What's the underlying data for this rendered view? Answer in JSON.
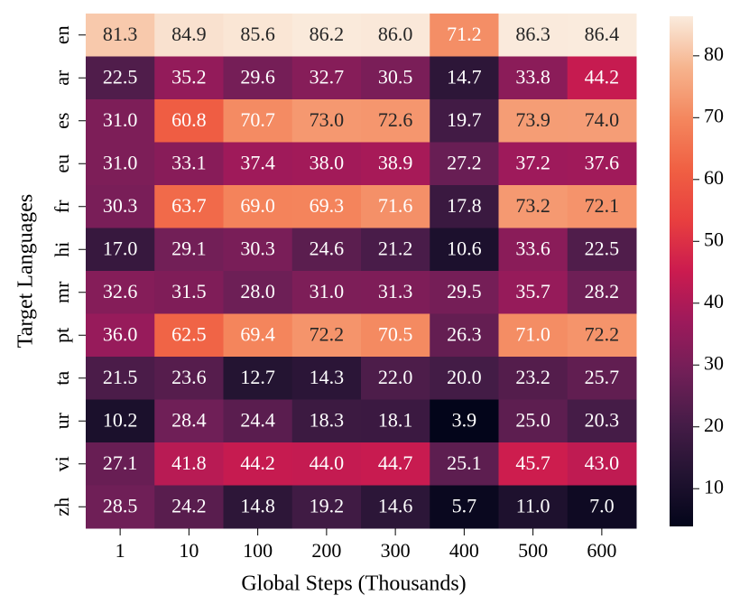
{
  "chart_data": {
    "type": "heatmap",
    "x_label": "Global Steps (Thousands)",
    "y_label": "Target Languages",
    "categories": [
      "1",
      "10",
      "100",
      "200",
      "300",
      "400",
      "500",
      "600"
    ],
    "series": [
      {
        "name": "en",
        "values": [
          81.3,
          84.9,
          85.6,
          86.2,
          86.0,
          71.2,
          86.3,
          86.4
        ],
        "value_labels": [
          "81.3",
          "84.9",
          "85.6",
          "86.2",
          "86.0",
          "71.2",
          "86.3",
          "86.4"
        ]
      },
      {
        "name": "ar",
        "values": [
          22.5,
          35.2,
          29.6,
          32.7,
          30.5,
          14.7,
          33.8,
          44.2
        ],
        "value_labels": [
          "22.5",
          "35.2",
          "29.6",
          "32.7",
          "30.5",
          "14.7",
          "33.8",
          "44.2"
        ]
      },
      {
        "name": "es",
        "values": [
          31.0,
          60.8,
          70.7,
          73.0,
          72.6,
          19.7,
          73.9,
          74.0
        ],
        "value_labels": [
          "31.0",
          "60.8",
          "70.7",
          "73.0",
          "72.6",
          "19.7",
          "73.9",
          "74.0"
        ]
      },
      {
        "name": "eu",
        "values": [
          31.0,
          33.1,
          37.4,
          38.0,
          38.9,
          27.2,
          37.2,
          37.6
        ],
        "value_labels": [
          "31.0",
          "33.1",
          "37.4",
          "38.0",
          "38.9",
          "27.2",
          "37.2",
          "37.6"
        ]
      },
      {
        "name": "fr",
        "values": [
          30.3,
          63.7,
          69.0,
          69.3,
          71.6,
          17.8,
          73.2,
          72.1
        ],
        "value_labels": [
          "30.3",
          "63.7",
          "69.0",
          "69.3",
          "71.6",
          "17.8",
          "73.2",
          "72.1"
        ]
      },
      {
        "name": "hi",
        "values": [
          17.0,
          29.1,
          30.3,
          24.6,
          21.2,
          10.6,
          33.6,
          22.5
        ],
        "value_labels": [
          "17.0",
          "29.1",
          "30.3",
          "24.6",
          "21.2",
          "10.6",
          "33.6",
          "22.5"
        ]
      },
      {
        "name": "mr",
        "values": [
          32.6,
          31.5,
          28.0,
          31.0,
          31.3,
          29.5,
          35.7,
          28.2
        ],
        "value_labels": [
          "32.6",
          "31.5",
          "28.0",
          "31.0",
          "31.3",
          "29.5",
          "35.7",
          "28.2"
        ]
      },
      {
        "name": "pt",
        "values": [
          36.0,
          62.5,
          69.4,
          72.2,
          70.5,
          26.3,
          71.0,
          72.2
        ],
        "value_labels": [
          "36.0",
          "62.5",
          "69.4",
          "72.2",
          "70.5",
          "26.3",
          "71.0",
          "72.2"
        ]
      },
      {
        "name": "ta",
        "values": [
          21.5,
          23.6,
          12.7,
          14.3,
          22.0,
          20.0,
          23.2,
          25.7
        ],
        "value_labels": [
          "21.5",
          "23.6",
          "12.7",
          "14.3",
          "22.0",
          "20.0",
          "23.2",
          "25.7"
        ]
      },
      {
        "name": "ur",
        "values": [
          10.2,
          28.4,
          24.4,
          18.3,
          18.1,
          3.9,
          25.0,
          20.3
        ],
        "value_labels": [
          "10.2",
          "28.4",
          "24.4",
          "18.3",
          "18.1",
          "3.9",
          "25.0",
          "20.3"
        ]
      },
      {
        "name": "vi",
        "values": [
          27.1,
          41.8,
          44.2,
          44.0,
          44.7,
          25.1,
          45.7,
          43.0
        ],
        "value_labels": [
          "27.1",
          "41.8",
          "44.2",
          "44.0",
          "44.7",
          "25.1",
          "45.7",
          "43.0"
        ]
      },
      {
        "name": "zh",
        "values": [
          28.5,
          24.2,
          14.8,
          19.2,
          14.6,
          5.7,
          11.0,
          7.0
        ],
        "value_labels": [
          "28.5",
          "24.2",
          "14.8",
          "19.2",
          "14.6",
          "5.7",
          "11.0",
          "7.0"
        ]
      }
    ],
    "colormap": "rocket",
    "zlim": [
      3.9,
      86.4
    ],
    "zticks": [
      10,
      20,
      30,
      40,
      50,
      60,
      70,
      80
    ]
  }
}
